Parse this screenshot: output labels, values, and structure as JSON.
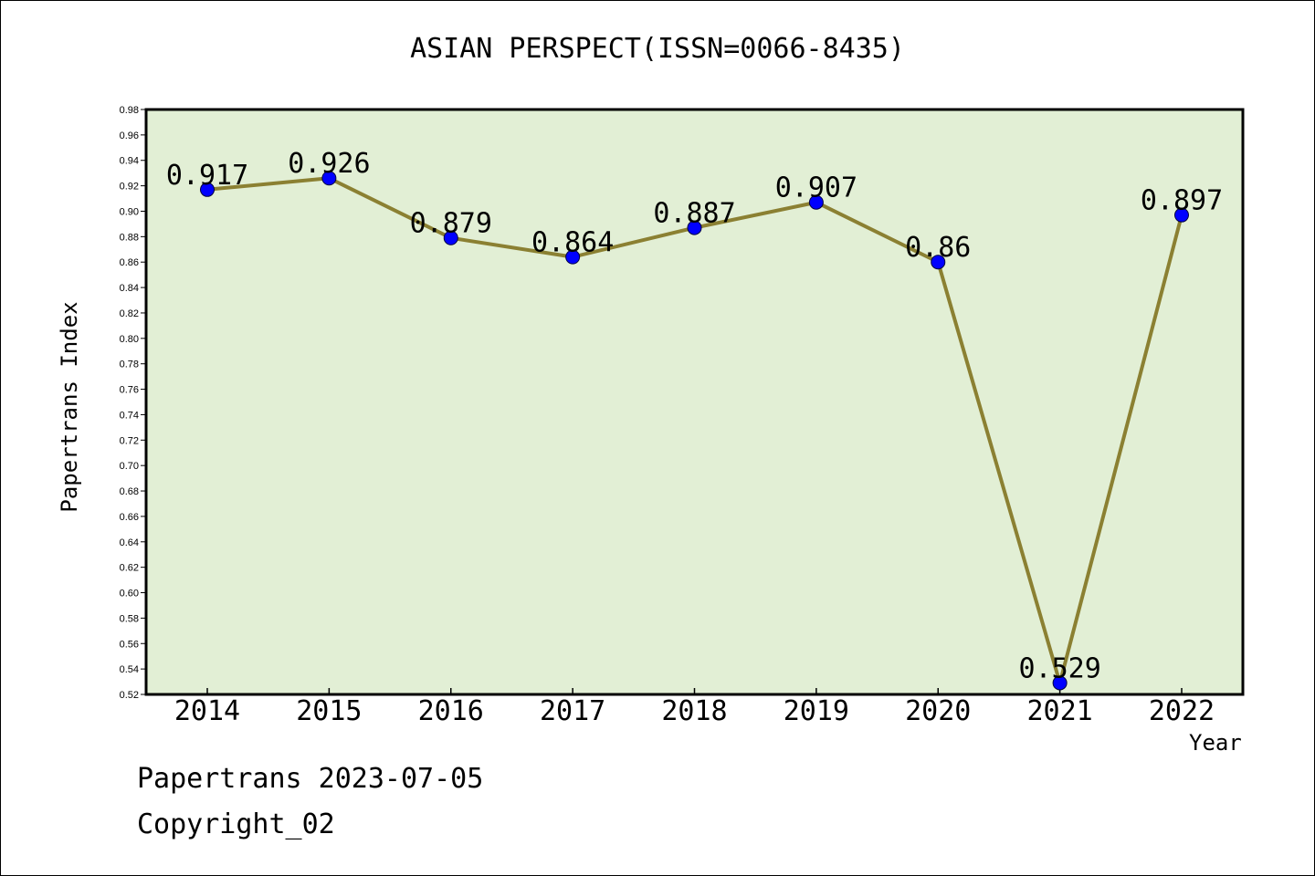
{
  "chart_data": {
    "type": "line",
    "title": "ASIAN PERSPECT(ISSN=0066-8435)",
    "xlabel": "Year",
    "ylabel": "Papertrans Index",
    "categories": [
      "2014",
      "2015",
      "2016",
      "2017",
      "2018",
      "2019",
      "2020",
      "2021",
      "2022"
    ],
    "values": [
      0.917,
      0.926,
      0.879,
      0.864,
      0.887,
      0.907,
      0.86,
      0.529,
      0.897
    ],
    "data_labels": [
      "0.917",
      "0.926",
      "0.879",
      "0.864",
      "0.887",
      "0.907",
      "0.86",
      "0.529",
      "0.897"
    ],
    "ylim": [
      0.52,
      0.98
    ],
    "yticks": [
      "0.52",
      "0.54",
      "0.56",
      "0.58",
      "0.60",
      "0.62",
      "0.64",
      "0.66",
      "0.68",
      "0.70",
      "0.72",
      "0.74",
      "0.76",
      "0.78",
      "0.80",
      "0.82",
      "0.84",
      "0.86",
      "0.88",
      "0.90",
      "0.92",
      "0.94",
      "0.96",
      "0.98"
    ],
    "grid": false,
    "colors": {
      "plot_background": "#e2efd5",
      "line": "#8b8032",
      "marker": "#0000ff"
    }
  },
  "footer": {
    "line1": "Papertrans 2023-07-05",
    "line2": "Copyright_02"
  }
}
